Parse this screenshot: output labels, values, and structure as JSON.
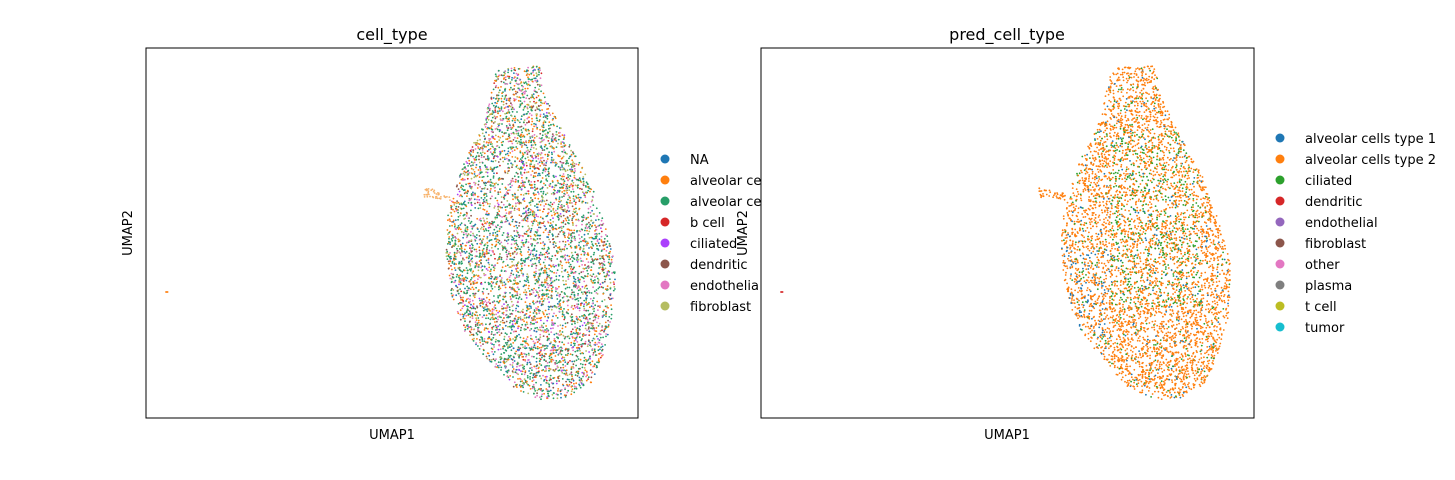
{
  "chart_data": [
    {
      "type": "scatter",
      "title": "cell_type",
      "xlabel": "UMAP1",
      "ylabel": "UMAP2",
      "grid": false,
      "ticks": false,
      "legend_position": "right",
      "legend": [
        {
          "label": "NA",
          "color": "#1f77b4"
        },
        {
          "label": "alveolar ce",
          "color": "#ff7f0e"
        },
        {
          "label": "alveolar ce",
          "color": "#279e68"
        },
        {
          "label": "b cell",
          "color": "#d62728"
        },
        {
          "label": "ciliated",
          "color": "#aa40fc"
        },
        {
          "label": "dendritic",
          "color": "#8c564b"
        },
        {
          "label": "endothelia",
          "color": "#e377c2"
        },
        {
          "label": "fibroblast",
          "color": "#b5bd61"
        }
      ],
      "dominant_colors": [
        "#279e68",
        "#ff7f0e",
        "#e377c2",
        "#b5bd61",
        "#8c564b",
        "#1f77b4",
        "#d62728",
        "#aa40fc"
      ]
    },
    {
      "type": "scatter",
      "title": "pred_cell_type",
      "xlabel": "UMAP1",
      "ylabel": "UMAP2",
      "grid": false,
      "ticks": false,
      "legend_position": "right",
      "legend": [
        {
          "label": "alveolar cells type 1",
          "color": "#1f77b4"
        },
        {
          "label": "alveolar cells type 2",
          "color": "#ff7f0e"
        },
        {
          "label": "ciliated",
          "color": "#2ca02c"
        },
        {
          "label": "dendritic",
          "color": "#d62728"
        },
        {
          "label": "endothelial",
          "color": "#9467bd"
        },
        {
          "label": "fibroblast",
          "color": "#8c564b"
        },
        {
          "label": "other",
          "color": "#e377c2"
        },
        {
          "label": "plasma",
          "color": "#7f7f7f"
        },
        {
          "label": "t cell",
          "color": "#bcbd22"
        },
        {
          "label": "tumor",
          "color": "#17becf"
        }
      ],
      "dominant_colors": [
        "#ff7f0e",
        "#2ca02c",
        "#1f77b4"
      ]
    }
  ]
}
